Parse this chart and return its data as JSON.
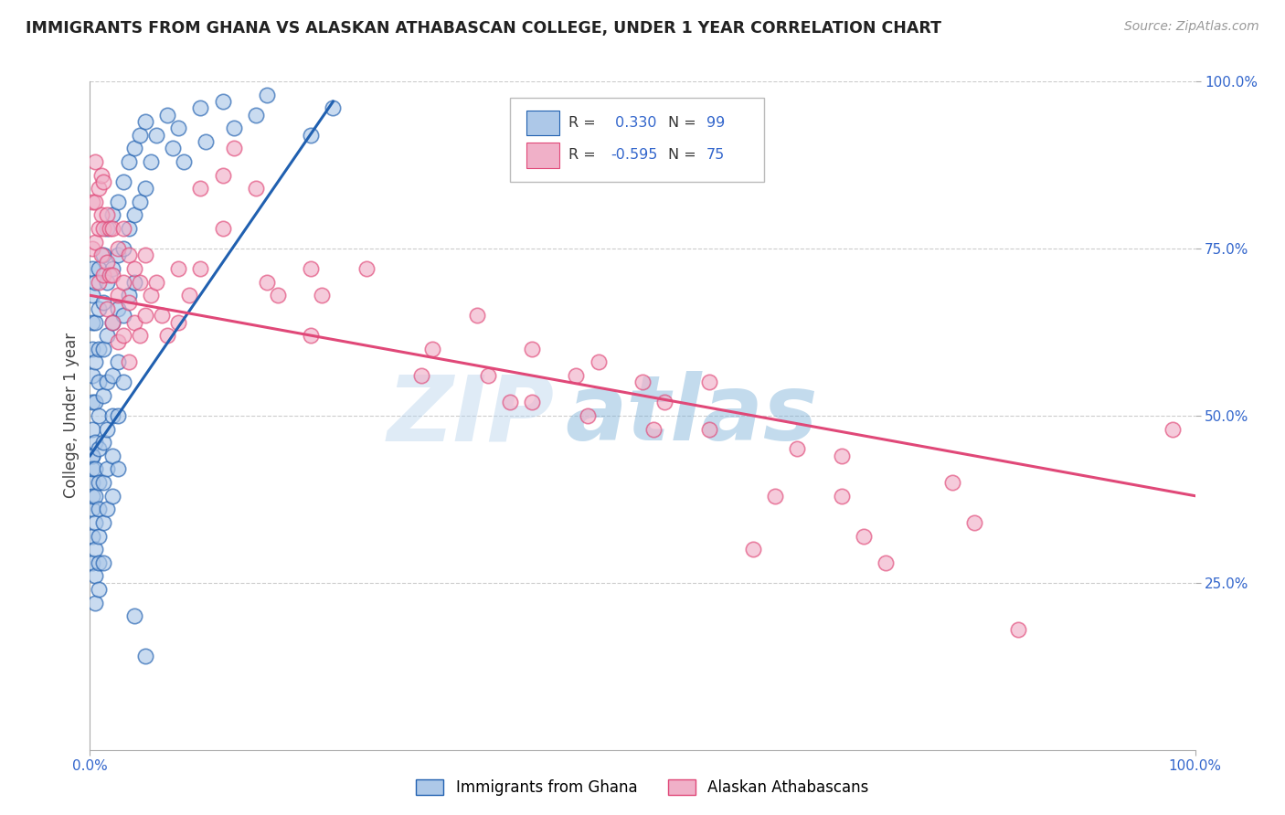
{
  "title": "IMMIGRANTS FROM GHANA VS ALASKAN ATHABASCAN COLLEGE, UNDER 1 YEAR CORRELATION CHART",
  "source": "Source: ZipAtlas.com",
  "ylabel": "College, Under 1 year",
  "xlim": [
    0.0,
    1.0
  ],
  "ylim": [
    0.0,
    1.0
  ],
  "ytick_labels": [
    "25.0%",
    "50.0%",
    "75.0%",
    "100.0%"
  ],
  "ytick_positions": [
    0.25,
    0.5,
    0.75,
    1.0
  ],
  "color_blue": "#adc8e8",
  "color_pink": "#f0b0c8",
  "line_blue": "#2060b0",
  "line_pink": "#e04878",
  "background_color": "#ffffff",
  "grid_color": "#cccccc",
  "blue_scatter": [
    [
      0.002,
      0.72
    ],
    [
      0.002,
      0.68
    ],
    [
      0.002,
      0.64
    ],
    [
      0.002,
      0.6
    ],
    [
      0.002,
      0.56
    ],
    [
      0.002,
      0.52
    ],
    [
      0.002,
      0.48
    ],
    [
      0.002,
      0.44
    ],
    [
      0.002,
      0.4
    ],
    [
      0.002,
      0.36
    ],
    [
      0.002,
      0.32
    ],
    [
      0.002,
      0.28
    ],
    [
      0.002,
      0.44
    ],
    [
      0.002,
      0.42
    ],
    [
      0.002,
      0.38
    ],
    [
      0.005,
      0.7
    ],
    [
      0.005,
      0.64
    ],
    [
      0.005,
      0.58
    ],
    [
      0.005,
      0.52
    ],
    [
      0.005,
      0.46
    ],
    [
      0.005,
      0.42
    ],
    [
      0.005,
      0.38
    ],
    [
      0.005,
      0.34
    ],
    [
      0.005,
      0.3
    ],
    [
      0.005,
      0.26
    ],
    [
      0.005,
      0.22
    ],
    [
      0.008,
      0.72
    ],
    [
      0.008,
      0.66
    ],
    [
      0.008,
      0.6
    ],
    [
      0.008,
      0.55
    ],
    [
      0.008,
      0.5
    ],
    [
      0.008,
      0.45
    ],
    [
      0.008,
      0.4
    ],
    [
      0.008,
      0.36
    ],
    [
      0.008,
      0.32
    ],
    [
      0.008,
      0.28
    ],
    [
      0.008,
      0.24
    ],
    [
      0.012,
      0.74
    ],
    [
      0.012,
      0.67
    ],
    [
      0.012,
      0.6
    ],
    [
      0.012,
      0.53
    ],
    [
      0.012,
      0.46
    ],
    [
      0.012,
      0.4
    ],
    [
      0.012,
      0.34
    ],
    [
      0.012,
      0.28
    ],
    [
      0.015,
      0.78
    ],
    [
      0.015,
      0.7
    ],
    [
      0.015,
      0.62
    ],
    [
      0.015,
      0.55
    ],
    [
      0.015,
      0.48
    ],
    [
      0.015,
      0.42
    ],
    [
      0.015,
      0.36
    ],
    [
      0.02,
      0.8
    ],
    [
      0.02,
      0.72
    ],
    [
      0.02,
      0.64
    ],
    [
      0.02,
      0.56
    ],
    [
      0.02,
      0.5
    ],
    [
      0.02,
      0.44
    ],
    [
      0.02,
      0.38
    ],
    [
      0.025,
      0.82
    ],
    [
      0.025,
      0.74
    ],
    [
      0.025,
      0.66
    ],
    [
      0.025,
      0.58
    ],
    [
      0.025,
      0.5
    ],
    [
      0.025,
      0.42
    ],
    [
      0.03,
      0.85
    ],
    [
      0.03,
      0.75
    ],
    [
      0.03,
      0.65
    ],
    [
      0.03,
      0.55
    ],
    [
      0.035,
      0.88
    ],
    [
      0.035,
      0.78
    ],
    [
      0.035,
      0.68
    ],
    [
      0.04,
      0.9
    ],
    [
      0.04,
      0.8
    ],
    [
      0.04,
      0.7
    ],
    [
      0.045,
      0.92
    ],
    [
      0.045,
      0.82
    ],
    [
      0.05,
      0.94
    ],
    [
      0.05,
      0.84
    ],
    [
      0.055,
      0.88
    ],
    [
      0.06,
      0.92
    ],
    [
      0.07,
      0.95
    ],
    [
      0.075,
      0.9
    ],
    [
      0.08,
      0.93
    ],
    [
      0.085,
      0.88
    ],
    [
      0.1,
      0.96
    ],
    [
      0.105,
      0.91
    ],
    [
      0.12,
      0.97
    ],
    [
      0.13,
      0.93
    ],
    [
      0.15,
      0.95
    ],
    [
      0.16,
      0.98
    ],
    [
      0.04,
      0.2
    ],
    [
      0.05,
      0.14
    ],
    [
      0.2,
      0.92
    ],
    [
      0.22,
      0.96
    ]
  ],
  "pink_scatter": [
    [
      0.002,
      0.82
    ],
    [
      0.002,
      0.75
    ],
    [
      0.005,
      0.88
    ],
    [
      0.005,
      0.82
    ],
    [
      0.005,
      0.76
    ],
    [
      0.008,
      0.84
    ],
    [
      0.008,
      0.78
    ],
    [
      0.008,
      0.7
    ],
    [
      0.01,
      0.86
    ],
    [
      0.01,
      0.8
    ],
    [
      0.01,
      0.74
    ],
    [
      0.012,
      0.85
    ],
    [
      0.012,
      0.78
    ],
    [
      0.012,
      0.71
    ],
    [
      0.015,
      0.8
    ],
    [
      0.015,
      0.73
    ],
    [
      0.015,
      0.66
    ],
    [
      0.018,
      0.78
    ],
    [
      0.018,
      0.71
    ],
    [
      0.02,
      0.78
    ],
    [
      0.02,
      0.71
    ],
    [
      0.02,
      0.64
    ],
    [
      0.025,
      0.75
    ],
    [
      0.025,
      0.68
    ],
    [
      0.025,
      0.61
    ],
    [
      0.03,
      0.78
    ],
    [
      0.03,
      0.7
    ],
    [
      0.03,
      0.62
    ],
    [
      0.035,
      0.74
    ],
    [
      0.035,
      0.67
    ],
    [
      0.035,
      0.58
    ],
    [
      0.04,
      0.72
    ],
    [
      0.04,
      0.64
    ],
    [
      0.045,
      0.7
    ],
    [
      0.045,
      0.62
    ],
    [
      0.05,
      0.74
    ],
    [
      0.05,
      0.65
    ],
    [
      0.055,
      0.68
    ],
    [
      0.06,
      0.7
    ],
    [
      0.065,
      0.65
    ],
    [
      0.07,
      0.62
    ],
    [
      0.08,
      0.72
    ],
    [
      0.08,
      0.64
    ],
    [
      0.09,
      0.68
    ],
    [
      0.1,
      0.84
    ],
    [
      0.1,
      0.72
    ],
    [
      0.12,
      0.86
    ],
    [
      0.12,
      0.78
    ],
    [
      0.13,
      0.9
    ],
    [
      0.15,
      0.84
    ],
    [
      0.16,
      0.7
    ],
    [
      0.17,
      0.68
    ],
    [
      0.2,
      0.72
    ],
    [
      0.2,
      0.62
    ],
    [
      0.21,
      0.68
    ],
    [
      0.25,
      0.72
    ],
    [
      0.3,
      0.56
    ],
    [
      0.31,
      0.6
    ],
    [
      0.35,
      0.65
    ],
    [
      0.36,
      0.56
    ],
    [
      0.38,
      0.52
    ],
    [
      0.4,
      0.6
    ],
    [
      0.4,
      0.52
    ],
    [
      0.44,
      0.56
    ],
    [
      0.45,
      0.5
    ],
    [
      0.46,
      0.58
    ],
    [
      0.5,
      0.55
    ],
    [
      0.51,
      0.48
    ],
    [
      0.52,
      0.52
    ],
    [
      0.56,
      0.55
    ],
    [
      0.56,
      0.48
    ],
    [
      0.6,
      0.3
    ],
    [
      0.62,
      0.38
    ],
    [
      0.64,
      0.45
    ],
    [
      0.68,
      0.44
    ],
    [
      0.68,
      0.38
    ],
    [
      0.7,
      0.32
    ],
    [
      0.72,
      0.28
    ],
    [
      0.78,
      0.4
    ],
    [
      0.8,
      0.34
    ],
    [
      0.84,
      0.18
    ],
    [
      0.98,
      0.48
    ]
  ],
  "blue_line_x": [
    0.0,
    0.22
  ],
  "blue_line_y": [
    0.44,
    0.97
  ],
  "pink_line_x": [
    0.0,
    1.0
  ],
  "pink_line_y": [
    0.68,
    0.38
  ]
}
